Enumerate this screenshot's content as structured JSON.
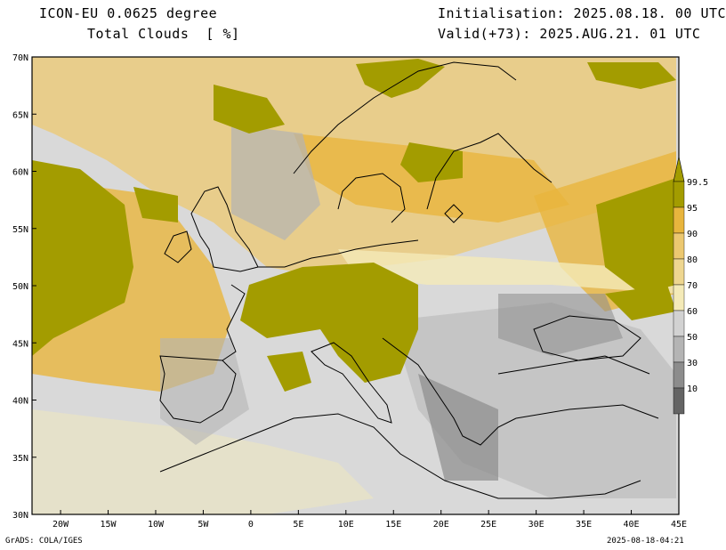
{
  "header": {
    "model_title": "ICON-EU 0.0625 degree",
    "variable": "Total Clouds  [ %]",
    "initialisation": "Initialisation: 2025.08.18. 00 UTC",
    "valid": "Valid(+73): 2025.AUG.21. 01 UTC"
  },
  "map": {
    "lat_labels": [
      "70N",
      "65N",
      "60N",
      "55N",
      "50N",
      "45N",
      "40N",
      "35N",
      "30N"
    ],
    "lon_labels": [
      "20W",
      "15W",
      "10W",
      "5W",
      "0",
      "5E",
      "10E",
      "15E",
      "20E",
      "25E",
      "30E",
      "35E",
      "40E",
      "45E"
    ],
    "lat_range": [
      30,
      70
    ],
    "lon_range": [
      -23,
      45
    ],
    "background_color": "#d9d9d9"
  },
  "colorbar": {
    "labels": [
      "99.5",
      "95",
      "90",
      "80",
      "70",
      "60",
      "50",
      "30",
      "10"
    ],
    "colors": [
      "#a39c00",
      "#e8b53d",
      "#ecc870",
      "#eed690",
      "#f4eab8",
      "#d2d2d2",
      "#b4b4b4",
      "#8c8c8c",
      "#646464"
    ]
  },
  "footer": {
    "left": "GrADS: COLA/IGES",
    "right": "2025-08-18-04:21"
  }
}
